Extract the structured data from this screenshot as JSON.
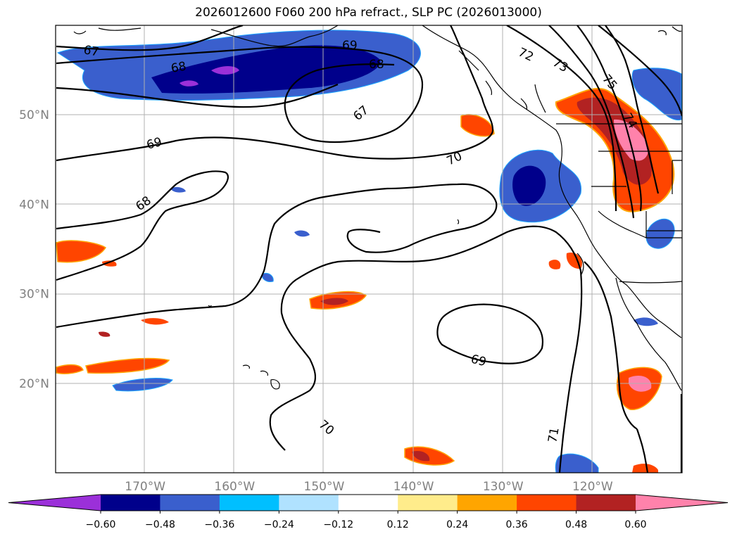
{
  "title": "2026012600 F060 200 hPa refract., SLP PC (2026013000)",
  "map": {
    "lon_range": [
      -180,
      -110
    ],
    "lat_range": [
      10,
      60
    ],
    "lon_ticks": [
      {
        "value": -170,
        "label": "170°W"
      },
      {
        "value": -160,
        "label": "160°W"
      },
      {
        "value": -150,
        "label": "150°W"
      },
      {
        "value": -140,
        "label": "140°W"
      },
      {
        "value": -130,
        "label": "130°W"
      },
      {
        "value": -120,
        "label": "120°W"
      }
    ],
    "lat_ticks": [
      {
        "value": 20,
        "label": "20°N"
      },
      {
        "value": 30,
        "label": "30°N"
      },
      {
        "value": 40,
        "label": "40°N"
      },
      {
        "value": 50,
        "label": "50°N"
      }
    ],
    "tick_label_color": "#808080",
    "grid": true,
    "contour_labels": [
      "67",
      "68",
      "69",
      "72",
      "73",
      "75",
      "67",
      "68",
      "69",
      "68",
      "70",
      "74",
      "69",
      "70",
      "71"
    ]
  },
  "colorbar": {
    "colors": [
      "#9b30d9",
      "#00008b",
      "#3a5fcd",
      "#00bfff",
      "#b0e2ff",
      "#ffffff",
      "#ffec8b",
      "#ffa500",
      "#ff4500",
      "#b22222",
      "#ff82ab"
    ],
    "tick_labels": [
      "−0.60",
      "−0.48",
      "−0.36",
      "−0.24",
      "−0.12",
      "0.12",
      "0.24",
      "0.36",
      "0.48",
      "0.60"
    ]
  }
}
